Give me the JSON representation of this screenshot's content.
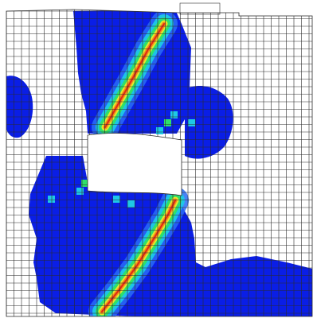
{
  "figure": {
    "kind": "finite-element mesh contour plot",
    "colors": {
      "background": "#ffffff",
      "mesh_line": "#2a2a2a",
      "level_blue": "#0a1ee6",
      "level_mid_blue": "#2a6cf5",
      "level_cyan": "#1ec8e6",
      "level_green": "#2ee06a",
      "level_yellow": "#e8e62a",
      "level_orange": "#f08a1c",
      "level_red": "#e02a14",
      "hole": "#ffffff"
    }
  }
}
